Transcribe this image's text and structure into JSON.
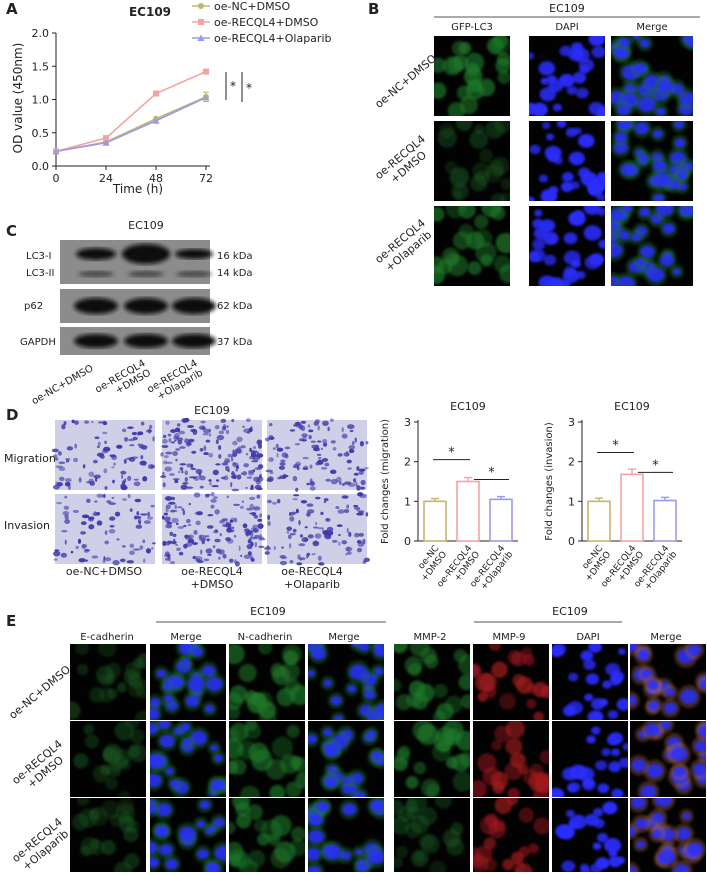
{
  "panels": {
    "a": "A",
    "b": "B",
    "c": "C",
    "d": "D",
    "e": "E"
  },
  "colors": {
    "nc": "#c4b56c",
    "recql4": "#f4a3a3",
    "olaparib": "#9a9be6"
  },
  "panel_a": {
    "title": "EC109",
    "legend": [
      "oe-NC+DMSO",
      "oe-RECQL4+DMSO",
      "oe-RECQL4+Olaparib"
    ],
    "sig": [
      "*",
      "*"
    ]
  },
  "panel_b": {
    "group": "EC109",
    "columns": [
      "GFP-LC3",
      "DAPI",
      "Merge"
    ],
    "rows": [
      [
        "oe-NC+DMSO"
      ],
      [
        "oe-RECQL4",
        "+DMSO"
      ],
      [
        "oe-RECQL4",
        "+Olaparib"
      ]
    ]
  },
  "panel_c": {
    "title": "EC109",
    "bands": [
      {
        "left": "LC3-I",
        "right": "16 kDa"
      },
      {
        "left": "LC3-II",
        "right": "14 kDa"
      },
      {
        "left": "p62",
        "right": "62 kDa"
      },
      {
        "left": "GAPDH",
        "right": "37 kDa"
      }
    ],
    "lanes": [
      [
        "oe-NC+DMSO"
      ],
      [
        "oe-RECQL4",
        "+DMSO"
      ],
      [
        "oe-RECQL4",
        "+Olaparib"
      ]
    ]
  },
  "panel_d": {
    "title": "EC109",
    "rows": [
      "Migration",
      "Invasion"
    ],
    "cols": [
      [
        "oe-NC+DMSO"
      ],
      [
        "oe-RECQL4",
        "+DMSO"
      ],
      [
        "oe-RECQL4",
        "+Olaparib"
      ]
    ]
  },
  "panel_e": {
    "group1": "EC109",
    "group2": "EC109",
    "columns": [
      "E-cadherin",
      "Merge",
      "N-cadherin",
      "Merge",
      "MMP-2",
      "MMP-9",
      "DAPI",
      "Merge"
    ],
    "rows": [
      [
        "oe-NC+DMSO"
      ],
      [
        "oe-RECQL4",
        "+DMSO"
      ],
      [
        "oe-RECQL4",
        "+Olaparib"
      ]
    ]
  },
  "chart_data": [
    {
      "type": "line",
      "title": "EC109",
      "xlabel": "Time (h)",
      "ylabel": "OD value (450nm)",
      "x": [
        0,
        24,
        48,
        72
      ],
      "xlim": [
        0,
        72
      ],
      "ylim": [
        0,
        2.0
      ],
      "yticks": [
        "0.0",
        "0.5",
        "1.0",
        "1.5",
        "2.0"
      ],
      "xticks": [
        "0",
        "24",
        "48",
        "72"
      ],
      "series": [
        {
          "name": "oe-NC+DMSO",
          "values": [
            0.22,
            0.36,
            0.71,
            1.04
          ]
        },
        {
          "name": "oe-RECQL4+DMSO",
          "values": [
            0.22,
            0.42,
            1.09,
            1.42
          ]
        },
        {
          "name": "oe-RECQL4+Olaparib",
          "values": [
            0.22,
            0.35,
            0.68,
            1.03
          ]
        }
      ],
      "legend": "top"
    },
    {
      "type": "bar",
      "title": "EC109",
      "ylabel": "Fold changes (migration)",
      "categories": [
        [
          "oe-NC",
          "+DMSO"
        ],
        [
          "oe-RECQL4",
          "+DMSO"
        ],
        [
          "oe-RECQL4",
          "+Olaparib"
        ]
      ],
      "values": [
        1.0,
        1.5,
        1.05
      ],
      "errors": [
        0.07,
        0.1,
        0.07
      ],
      "ylim": [
        0,
        3
      ],
      "yticks": [
        "0",
        "1",
        "2",
        "3"
      ],
      "sig": [
        "*",
        "*"
      ]
    },
    {
      "type": "bar",
      "title": "EC109",
      "ylabel": "Fold changes (invasion)",
      "categories": [
        [
          "oe-NC",
          "+DMSO"
        ],
        [
          "oe-RECQL4",
          "+DMSO"
        ],
        [
          "oe-RECQL4",
          "+Olaparib"
        ]
      ],
      "values": [
        1.0,
        1.68,
        1.02
      ],
      "errors": [
        0.08,
        0.13,
        0.08
      ],
      "ylim": [
        0,
        3
      ],
      "yticks": [
        "0",
        "1",
        "2",
        "3"
      ],
      "sig": [
        "*",
        "*"
      ]
    }
  ]
}
